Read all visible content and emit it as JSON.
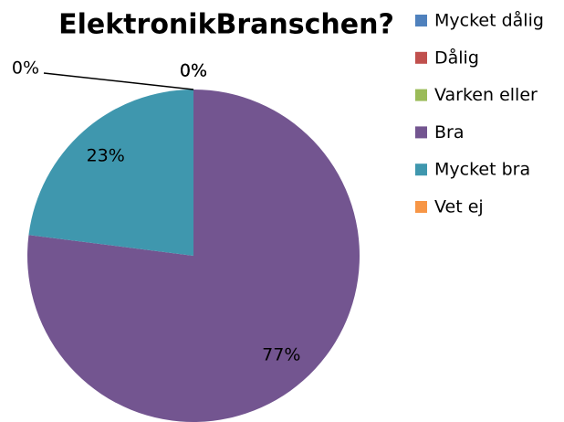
{
  "chart_data": {
    "type": "pie",
    "title": "ElektronikBranschen?",
    "categories": [
      "Mycket dålig",
      "Dålig",
      "Varken eller",
      "Bra",
      "Mycket bra",
      "Vet ej"
    ],
    "values": [
      0,
      0,
      0,
      77,
      23,
      0
    ],
    "value_labels": [
      "0%",
      "0%",
      "0%",
      "77%",
      "23%",
      "0%"
    ],
    "colors": [
      "#4f81bd",
      "#c0504d",
      "#9bbb59",
      "#735590",
      "#3f97ae",
      "#f79646"
    ],
    "legend": "right"
  }
}
